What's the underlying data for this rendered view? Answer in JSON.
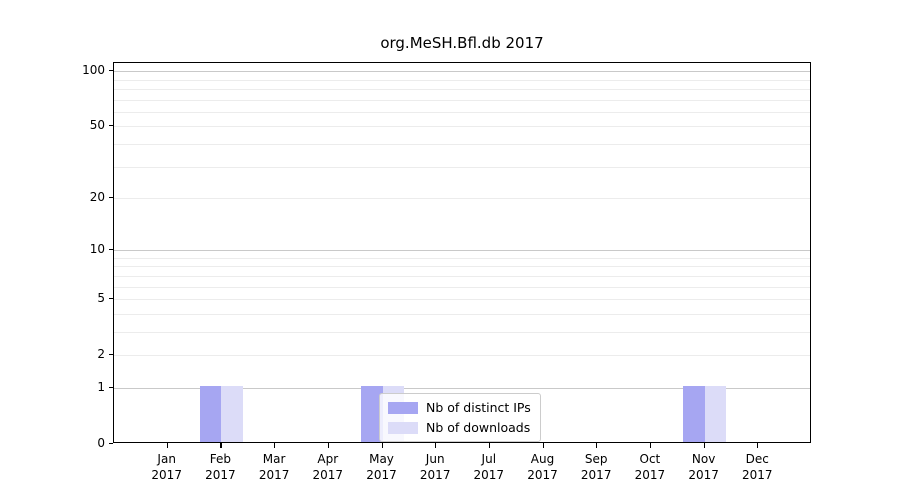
{
  "chart_data": {
    "type": "bar",
    "title": "org.MeSH.Bfl.db 2017",
    "categories": [
      "Jan",
      "Feb",
      "Mar",
      "Apr",
      "May",
      "Jun",
      "Jul",
      "Aug",
      "Sep",
      "Oct",
      "Nov",
      "Dec"
    ],
    "x_year_label": "2017",
    "series": [
      {
        "name": "Nb of distinct IPs",
        "color": "#a6a6f2",
        "values": [
          0,
          1,
          0,
          0,
          1,
          0,
          0,
          0,
          0,
          0,
          1,
          0
        ]
      },
      {
        "name": "Nb of downloads",
        "color": "#dcdcf8",
        "values": [
          0,
          1,
          0,
          0,
          1,
          0,
          0,
          0,
          0,
          0,
          1,
          0
        ]
      }
    ],
    "xlabel": "",
    "ylabel": "",
    "y_ticks": [
      0,
      1,
      2,
      5,
      10,
      20,
      50,
      100
    ],
    "y_scale": "log10(1+v)",
    "ylim": [
      0,
      110.6
    ],
    "grid": {
      "major_values": [
        1,
        10,
        100
      ],
      "minor_values": [
        2,
        3,
        4,
        5,
        6,
        7,
        8,
        9,
        20,
        30,
        40,
        50,
        60,
        70,
        80,
        90
      ]
    },
    "legend": {
      "position": "inside-bottom-center"
    }
  }
}
